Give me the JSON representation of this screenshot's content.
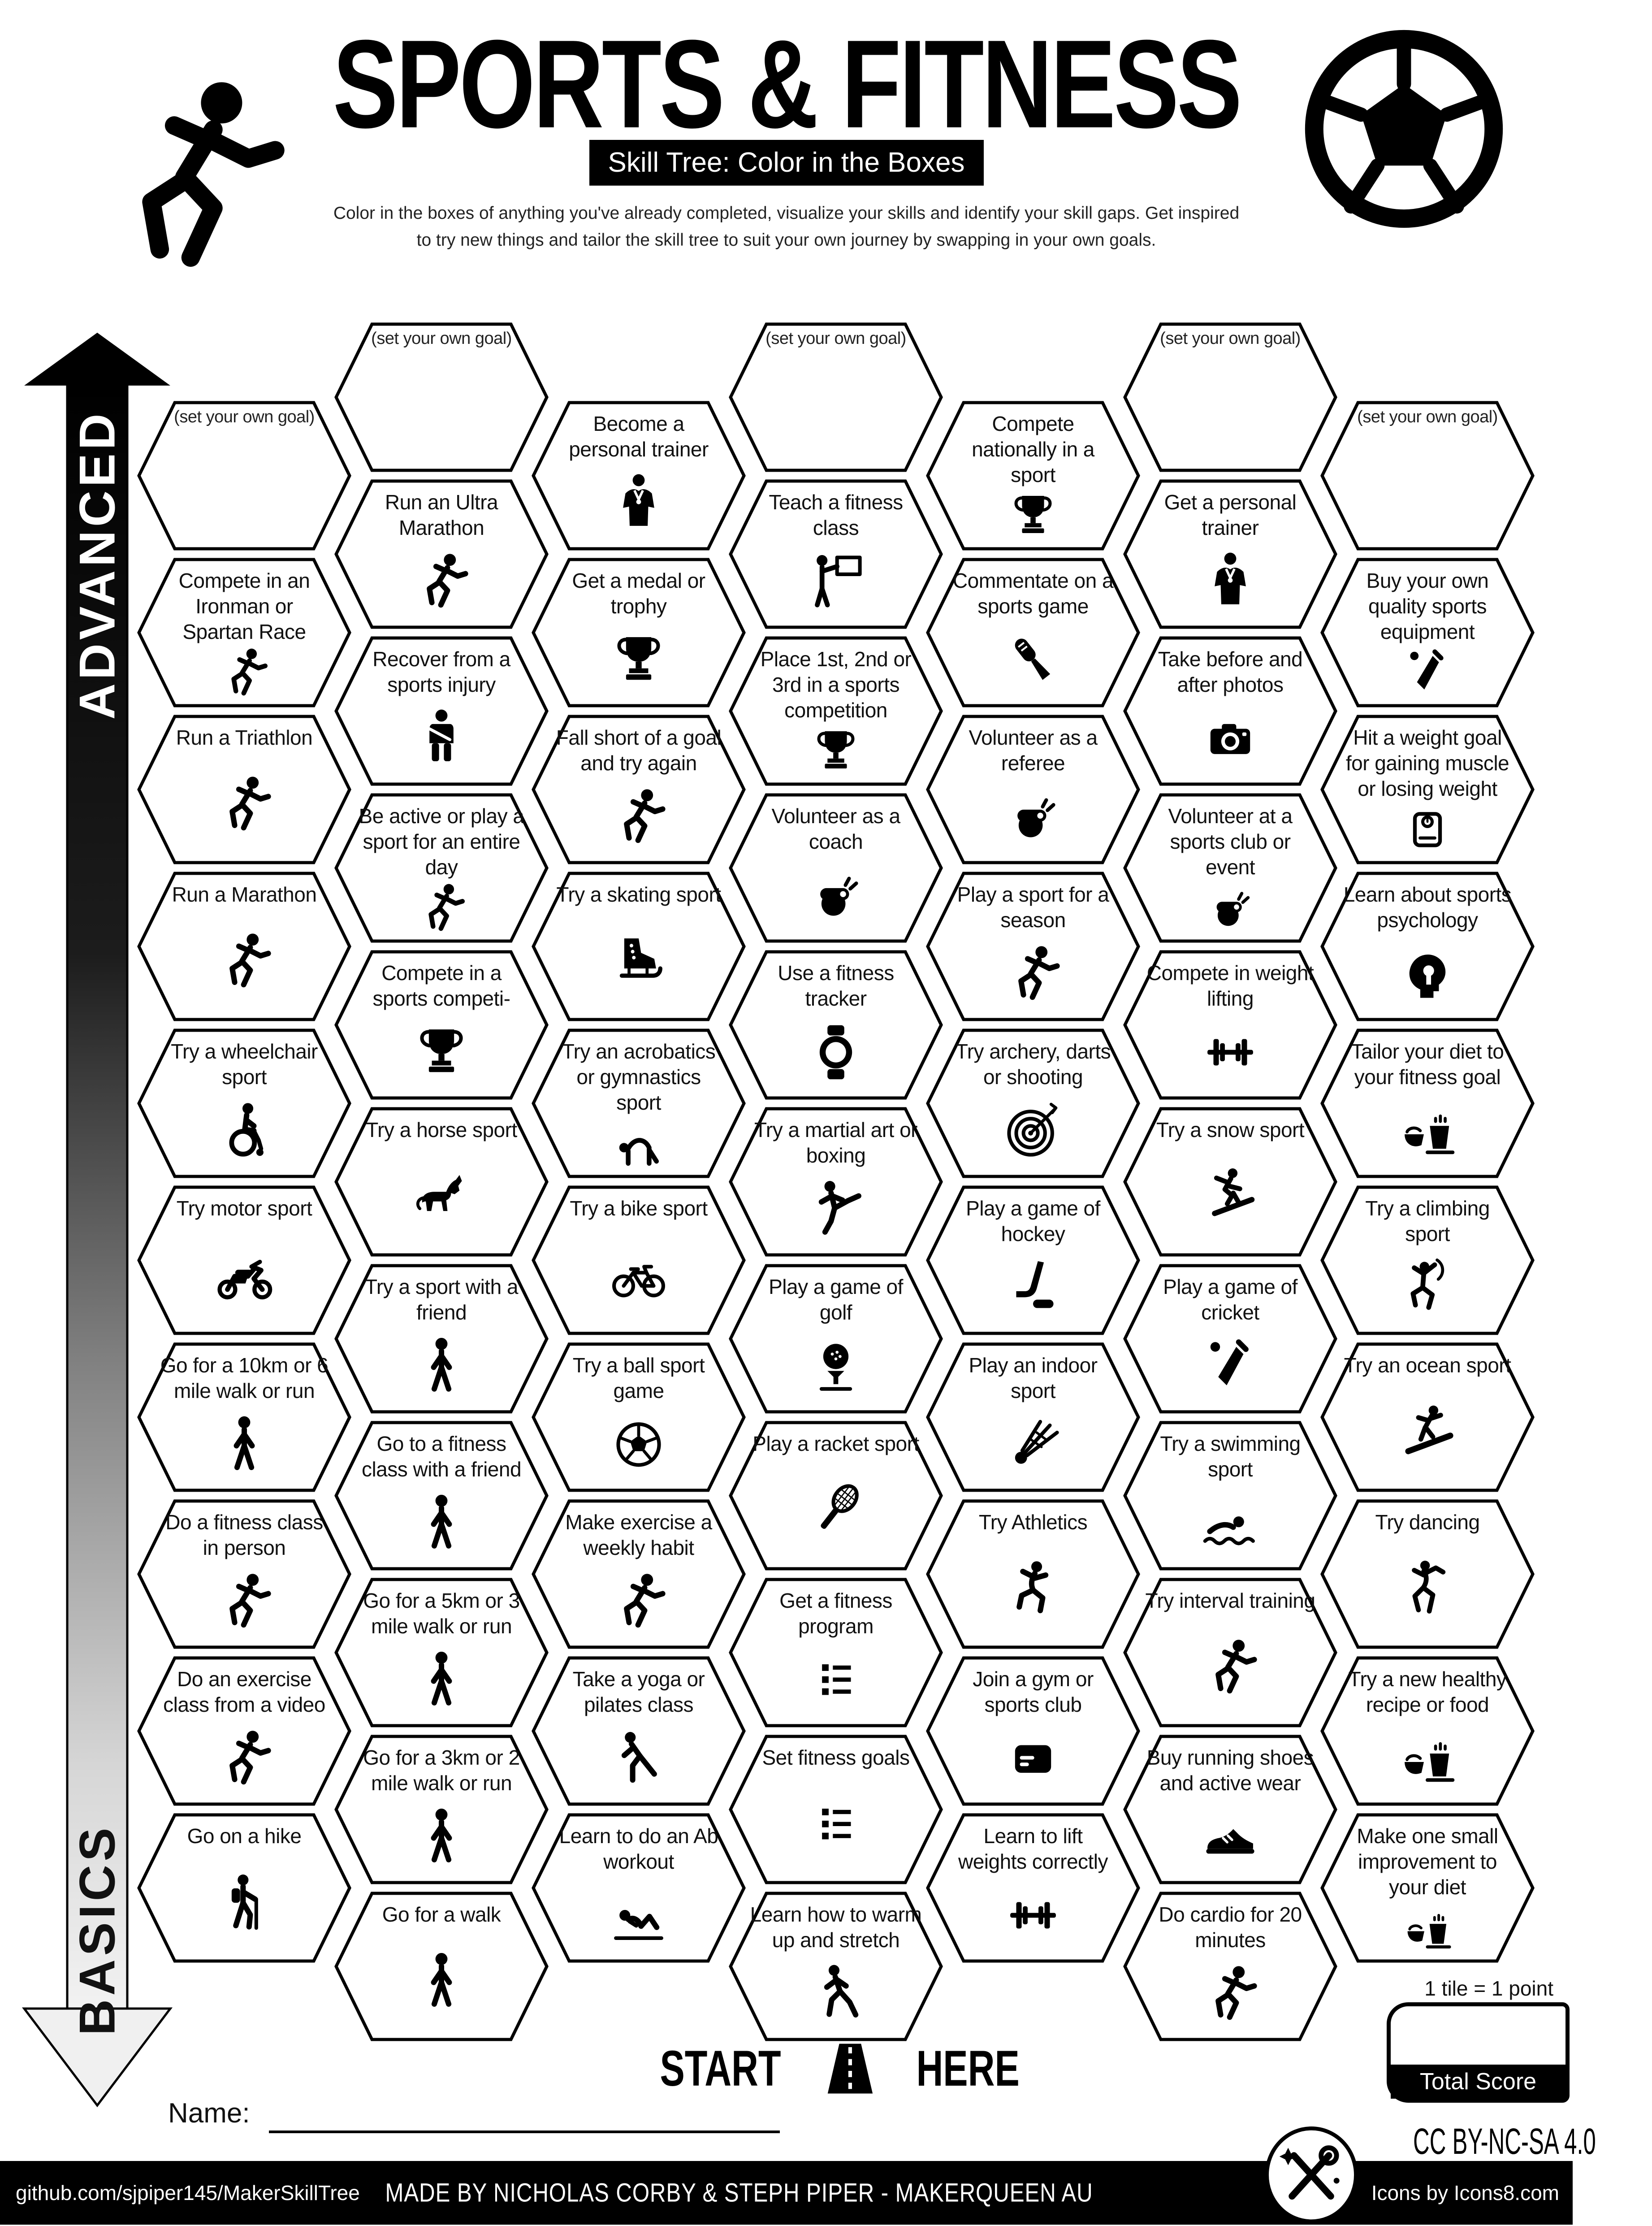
{
  "header": {
    "title": "SPORTS & FITNESS",
    "subtitle": "Skill Tree: Color in the Boxes",
    "desc1": "Color in the boxes of anything you've already completed, visualize your skills and identify your skill gaps.  Get inspired",
    "desc2": "to try new things and tailor the skill tree to suit your own journey by swapping in your own goals."
  },
  "axis": {
    "top": "ADVANCED",
    "bottom": "BASICS"
  },
  "start": {
    "left": "START",
    "right": "HERE"
  },
  "name_label": "Name:",
  "score": {
    "note": "1 tile = 1 point",
    "box_label": "Total Score"
  },
  "license": "CC BY-NC-SA 4.0",
  "footer": {
    "left": "github.com/sjpiper145/MakerSkillTree",
    "center": "MADE BY NICHOLAS CORBY & STEPH PIPER  -  MAKERQUEEN AU",
    "right": "Icons by Icons8.com"
  },
  "decor_icons": {
    "logo": "runner",
    "header_right": "soccer-ball-large",
    "start_marker": "road",
    "badge": "crossed-tools"
  },
  "tiles": [
    {
      "c": 1,
      "r": 0,
      "label": "(set your own goal)",
      "icon": ""
    },
    {
      "c": 1,
      "r": 1,
      "label": "Compete in an Ironman or Spartan Race",
      "icon": "runner"
    },
    {
      "c": 1,
      "r": 2,
      "label": "Run a Triathlon",
      "icon": "runner"
    },
    {
      "c": 1,
      "r": 3,
      "label": "Run a Marathon",
      "icon": "runner"
    },
    {
      "c": 1,
      "r": 4,
      "label": "Try a wheelchair sport",
      "icon": "wheelchair"
    },
    {
      "c": 1,
      "r": 5,
      "label": "Try motor sport",
      "icon": "motorcycle"
    },
    {
      "c": 1,
      "r": 6,
      "label": "Go for a 10km or 6 mile walk or run",
      "icon": "walker"
    },
    {
      "c": 1,
      "r": 7,
      "label": "Do a fitness class in person",
      "icon": "runner"
    },
    {
      "c": 1,
      "r": 8,
      "label": "Do an exercise class from a video",
      "icon": "runner"
    },
    {
      "c": 1,
      "r": 9,
      "label": "Go on a hike",
      "icon": "hiker"
    },
    {
      "c": 2,
      "r": 0,
      "label": "(set your own goal)",
      "icon": ""
    },
    {
      "c": 2,
      "r": 1,
      "label": "Run an Ultra Marathon",
      "icon": "runner"
    },
    {
      "c": 2,
      "r": 2,
      "label": "Recover from a sports injury",
      "icon": "injured-person"
    },
    {
      "c": 2,
      "r": 3,
      "label": "Be active or play a sport for an entire day",
      "icon": "runner"
    },
    {
      "c": 2,
      "r": 4,
      "label": "Compete in a sports competi-",
      "icon": "trophy"
    },
    {
      "c": 2,
      "r": 5,
      "label": "Try a horse sport",
      "icon": "horse"
    },
    {
      "c": 2,
      "r": 6,
      "label": "Try a sport with a friend",
      "icon": "walker"
    },
    {
      "c": 2,
      "r": 7,
      "label": "Go to a fitness class with a friend",
      "icon": "walker"
    },
    {
      "c": 2,
      "r": 8,
      "label": "Go for a 5km or 3 mile walk or run",
      "icon": "walker"
    },
    {
      "c": 2,
      "r": 9,
      "label": "Go for a 3km or 2 mile walk or run",
      "icon": "walker"
    },
    {
      "c": 2,
      "r": 10,
      "label": "Go for a walk",
      "icon": "walker"
    },
    {
      "c": 3,
      "r": 0,
      "label": "Become a personal trainer",
      "icon": "personal-trainer"
    },
    {
      "c": 3,
      "r": 1,
      "label": "Get a medal or trophy",
      "icon": "trophy"
    },
    {
      "c": 3,
      "r": 2,
      "label": "Fall short of a goal and try again",
      "icon": "runner"
    },
    {
      "c": 3,
      "r": 3,
      "label": "Try a skating sport",
      "icon": "ice-skate"
    },
    {
      "c": 3,
      "r": 4,
      "label": "Try an acrobatics or gymnastics sport",
      "icon": "acrobat"
    },
    {
      "c": 3,
      "r": 5,
      "label": "Try a bike sport",
      "icon": "bicycle"
    },
    {
      "c": 3,
      "r": 6,
      "label": "Try a ball sport game",
      "icon": "soccer-ball"
    },
    {
      "c": 3,
      "r": 7,
      "label": "Make exercise a weekly habit",
      "icon": "runner"
    },
    {
      "c": 3,
      "r": 8,
      "label": "Take a yoga or pilates class",
      "icon": "yoga"
    },
    {
      "c": 3,
      "r": 9,
      "label": "Learn to do an Ab workout",
      "icon": "situp"
    },
    {
      "c": 4,
      "r": 0,
      "label": "(set your own goal)",
      "icon": ""
    },
    {
      "c": 4,
      "r": 1,
      "label": "Teach a fitness class",
      "icon": "teacher"
    },
    {
      "c": 4,
      "r": 2,
      "label": "Place 1st, 2nd or 3rd in a sports competition",
      "icon": "trophy"
    },
    {
      "c": 4,
      "r": 3,
      "label": "Volunteer as a coach",
      "icon": "whistle"
    },
    {
      "c": 4,
      "r": 4,
      "label": "Use a fitness tracker",
      "icon": "fitness-watch"
    },
    {
      "c": 4,
      "r": 5,
      "label": "Try a martial art or boxing",
      "icon": "martial-artist"
    },
    {
      "c": 4,
      "r": 6,
      "label": "Play a game of golf",
      "icon": "golf"
    },
    {
      "c": 4,
      "r": 7,
      "label": "Play a racket sport",
      "icon": "racket"
    },
    {
      "c": 4,
      "r": 8,
      "label": "Get a fitness program",
      "icon": "checklist"
    },
    {
      "c": 4,
      "r": 9,
      "label": "Set fitness goals",
      "icon": "checklist"
    },
    {
      "c": 4,
      "r": 10,
      "label": "Learn how to warm up and stretch",
      "icon": "stretch"
    },
    {
      "c": 5,
      "r": 0,
      "label": "Compete nationally in a sport",
      "icon": "trophy"
    },
    {
      "c": 5,
      "r": 1,
      "label": "Commentate on a sports game",
      "icon": "microphone"
    },
    {
      "c": 5,
      "r": 2,
      "label": "Volunteer as a referee",
      "icon": "whistle"
    },
    {
      "c": 5,
      "r": 3,
      "label": "Play a sport for a season",
      "icon": "runner"
    },
    {
      "c": 5,
      "r": 4,
      "label": "Try archery, darts or shooting",
      "icon": "target"
    },
    {
      "c": 5,
      "r": 5,
      "label": "Play a game of hockey",
      "icon": "hockey"
    },
    {
      "c": 5,
      "r": 6,
      "label": "Play an indoor sport",
      "icon": "shuttlecock"
    },
    {
      "c": 5,
      "r": 7,
      "label": "Try Athletics",
      "icon": "athlete"
    },
    {
      "c": 5,
      "r": 8,
      "label": "Join a gym or sports club",
      "icon": "membership-card"
    },
    {
      "c": 5,
      "r": 9,
      "label": "Learn to lift weights correctly",
      "icon": "barbell"
    },
    {
      "c": 6,
      "r": 0,
      "label": "(set your own goal)",
      "icon": ""
    },
    {
      "c": 6,
      "r": 1,
      "label": "Get a personal trainer",
      "icon": "personal-trainer"
    },
    {
      "c": 6,
      "r": 2,
      "label": "Take before and after photos",
      "icon": "camera"
    },
    {
      "c": 6,
      "r": 3,
      "label": "Volunteer at a sports club or event",
      "icon": "whistle"
    },
    {
      "c": 6,
      "r": 4,
      "label": "Compete in weight lifting",
      "icon": "barbell"
    },
    {
      "c": 6,
      "r": 5,
      "label": "Try a snow sport",
      "icon": "snowboarder"
    },
    {
      "c": 6,
      "r": 6,
      "label": "Play a game of cricket",
      "icon": "cricket-bat"
    },
    {
      "c": 6,
      "r": 7,
      "label": "Try a swimming sport",
      "icon": "swimmer"
    },
    {
      "c": 6,
      "r": 8,
      "label": "Try interval training",
      "icon": "runner"
    },
    {
      "c": 6,
      "r": 9,
      "label": "Buy running shoes and active wear",
      "icon": "shoe"
    },
    {
      "c": 6,
      "r": 10,
      "label": "Do cardio for 20 minutes",
      "icon": "runner"
    },
    {
      "c": 7,
      "r": 0,
      "label": "(set your own goal)",
      "icon": ""
    },
    {
      "c": 7,
      "r": 1,
      "label": "Buy your own quality sports equipment",
      "icon": "cricket-bat"
    },
    {
      "c": 7,
      "r": 2,
      "label": "Hit a weight goal for gaining muscle or losing weight",
      "icon": "scale"
    },
    {
      "c": 7,
      "r": 3,
      "label": "Learn about sports psychology",
      "icon": "psychology-head"
    },
    {
      "c": 7,
      "r": 4,
      "label": "Tailor your diet to your fitness goal",
      "icon": "diet"
    },
    {
      "c": 7,
      "r": 5,
      "label": "Try a climbing sport",
      "icon": "climber"
    },
    {
      "c": 7,
      "r": 6,
      "label": "Try an ocean sport",
      "icon": "surfer"
    },
    {
      "c": 7,
      "r": 7,
      "label": "Try dancing",
      "icon": "dancer"
    },
    {
      "c": 7,
      "r": 8,
      "label": "Try a new healthy recipe or food",
      "icon": "diet"
    },
    {
      "c": 7,
      "r": 9,
      "label": "Make one small improvement to your diet",
      "icon": "diet"
    }
  ]
}
